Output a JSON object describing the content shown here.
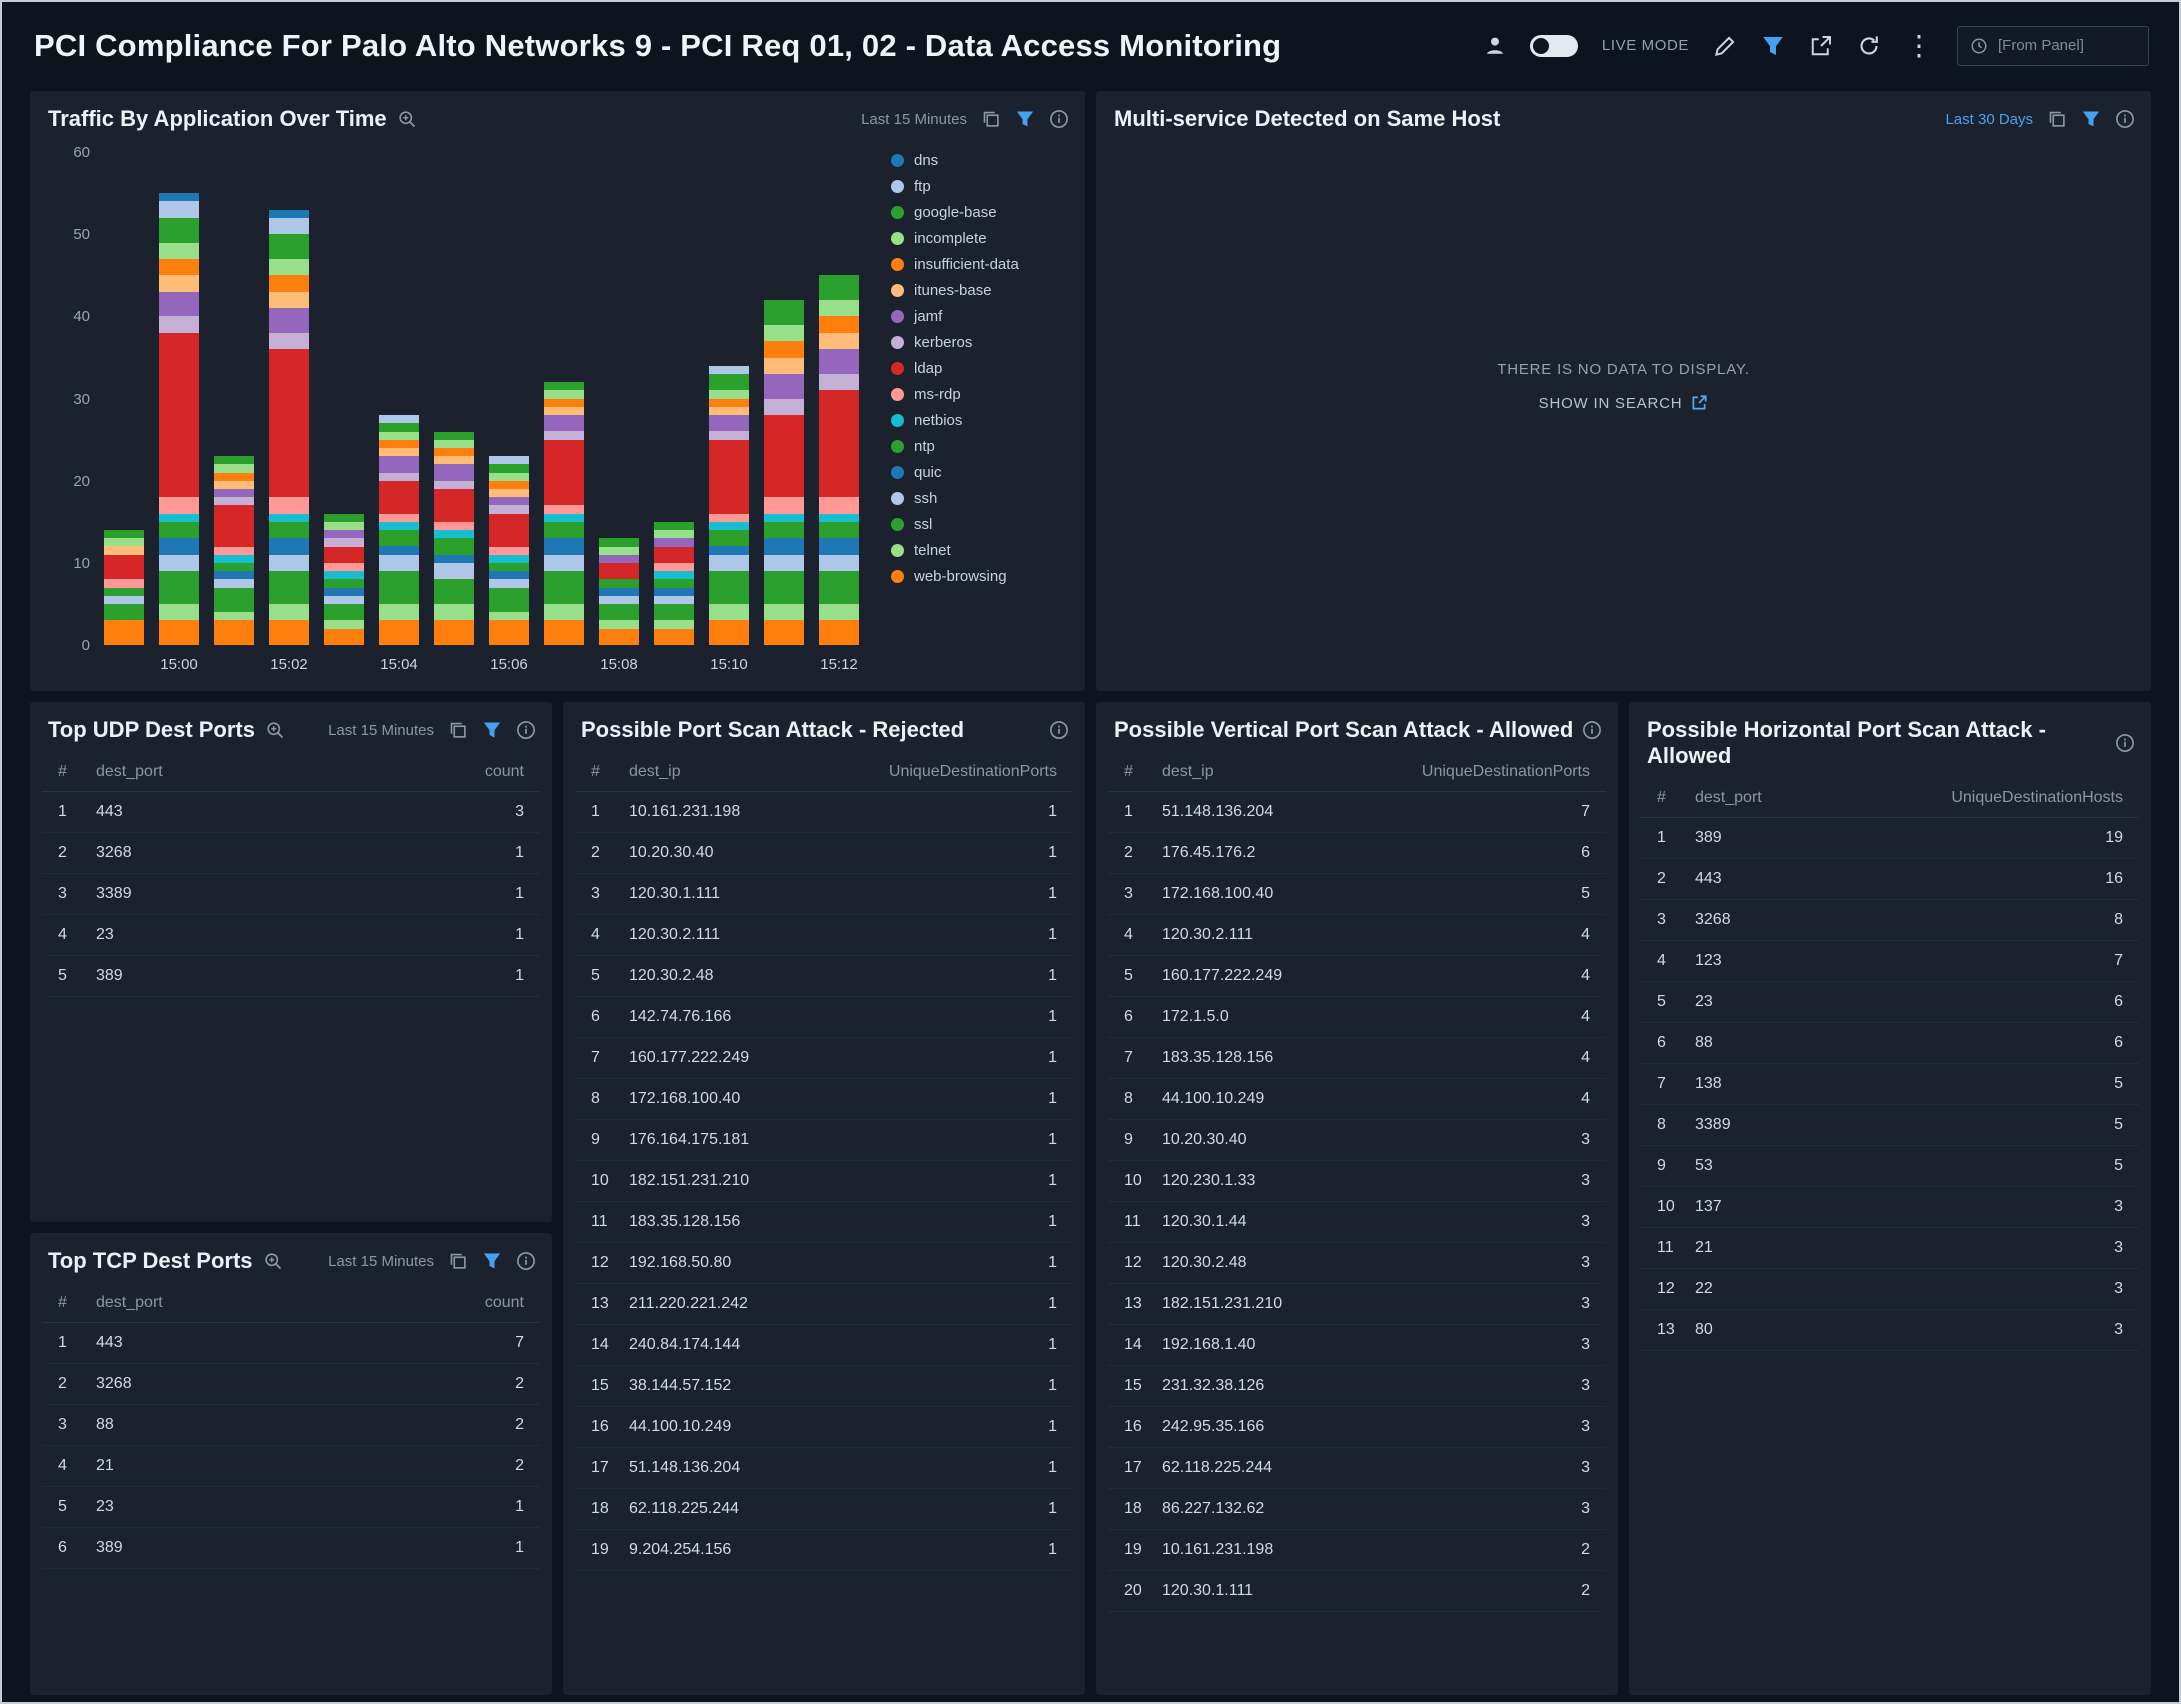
{
  "header": {
    "title": "PCI Compliance For Palo Alto Networks 9 - PCI Req 01, 02 - Data Access Monitoring",
    "live_mode_label": "LIVE MODE",
    "from_panel_value": "[From Panel]"
  },
  "theme": {
    "page_bg": "#0e141d",
    "panel_bg": "#1b222d",
    "accent_blue": "#459ff3",
    "text_primary": "#edf1f6",
    "text_muted": "#8b96a5"
  },
  "panels": {
    "traffic": {
      "title": "Traffic By Application Over Time",
      "time_range": "Last 15 Minutes"
    },
    "multi_service": {
      "title": "Multi-service Detected on Same Host",
      "time_range": "Last 30 Days",
      "empty_message": "THERE IS NO DATA TO DISPLAY.",
      "empty_link": "SHOW IN SEARCH"
    },
    "top_udp": {
      "title": "Top UDP Dest Ports",
      "time_range": "Last 15 Minutes",
      "columns": [
        "#",
        "dest_port",
        "count"
      ],
      "rows": [
        [
          1,
          "443",
          3
        ],
        [
          2,
          "3268",
          1
        ],
        [
          3,
          "3389",
          1
        ],
        [
          4,
          "23",
          1
        ],
        [
          5,
          "389",
          1
        ]
      ]
    },
    "top_tcp": {
      "title": "Top TCP Dest Ports",
      "time_range": "Last 15 Minutes",
      "columns": [
        "#",
        "dest_port",
        "count"
      ],
      "rows": [
        [
          1,
          "443",
          7
        ],
        [
          2,
          "3268",
          2
        ],
        [
          3,
          "88",
          2
        ],
        [
          4,
          "21",
          2
        ],
        [
          5,
          "23",
          1
        ],
        [
          6,
          "389",
          1
        ]
      ]
    },
    "rejected": {
      "title": "Possible Port Scan Attack - Rejected",
      "columns": [
        "#",
        "dest_ip",
        "UniqueDestinationPorts"
      ],
      "rows": [
        [
          1,
          "10.161.231.198",
          1
        ],
        [
          2,
          "10.20.30.40",
          1
        ],
        [
          3,
          "120.30.1.111",
          1
        ],
        [
          4,
          "120.30.2.111",
          1
        ],
        [
          5,
          "120.30.2.48",
          1
        ],
        [
          6,
          "142.74.76.166",
          1
        ],
        [
          7,
          "160.177.222.249",
          1
        ],
        [
          8,
          "172.168.100.40",
          1
        ],
        [
          9,
          "176.164.175.181",
          1
        ],
        [
          10,
          "182.151.231.210",
          1
        ],
        [
          11,
          "183.35.128.156",
          1
        ],
        [
          12,
          "192.168.50.80",
          1
        ],
        [
          13,
          "211.220.221.242",
          1
        ],
        [
          14,
          "240.84.174.144",
          1
        ],
        [
          15,
          "38.144.57.152",
          1
        ],
        [
          16,
          "44.100.10.249",
          1
        ],
        [
          17,
          "51.148.136.204",
          1
        ],
        [
          18,
          "62.118.225.244",
          1
        ],
        [
          19,
          "9.204.254.156",
          1
        ]
      ]
    },
    "vertical": {
      "title": "Possible Vertical Port Scan Attack - Allowed",
      "columns": [
        "#",
        "dest_ip",
        "UniqueDestinationPorts"
      ],
      "rows": [
        [
          1,
          "51.148.136.204",
          7
        ],
        [
          2,
          "176.45.176.2",
          6
        ],
        [
          3,
          "172.168.100.40",
          5
        ],
        [
          4,
          "120.30.2.111",
          4
        ],
        [
          5,
          "160.177.222.249",
          4
        ],
        [
          6,
          "172.1.5.0",
          4
        ],
        [
          7,
          "183.35.128.156",
          4
        ],
        [
          8,
          "44.100.10.249",
          4
        ],
        [
          9,
          "10.20.30.40",
          3
        ],
        [
          10,
          "120.230.1.33",
          3
        ],
        [
          11,
          "120.30.1.44",
          3
        ],
        [
          12,
          "120.30.2.48",
          3
        ],
        [
          13,
          "182.151.231.210",
          3
        ],
        [
          14,
          "192.168.1.40",
          3
        ],
        [
          15,
          "231.32.38.126",
          3
        ],
        [
          16,
          "242.95.35.166",
          3
        ],
        [
          17,
          "62.118.225.244",
          3
        ],
        [
          18,
          "86.227.132.62",
          3
        ],
        [
          19,
          "10.161.231.198",
          2
        ],
        [
          20,
          "120.30.1.111",
          2
        ]
      ]
    },
    "horizontal": {
      "title": "Possible Horizontal Port Scan Attack - Allowed",
      "columns": [
        "#",
        "dest_port",
        "UniqueDestinationHosts"
      ],
      "rows": [
        [
          1,
          "389",
          19
        ],
        [
          2,
          "443",
          16
        ],
        [
          3,
          "3268",
          8
        ],
        [
          4,
          "123",
          7
        ],
        [
          5,
          "23",
          6
        ],
        [
          6,
          "88",
          6
        ],
        [
          7,
          "138",
          5
        ],
        [
          8,
          "3389",
          5
        ],
        [
          9,
          "53",
          5
        ],
        [
          10,
          "137",
          3
        ],
        [
          11,
          "21",
          3
        ],
        [
          12,
          "22",
          3
        ],
        [
          13,
          "80",
          3
        ]
      ]
    }
  },
  "chart_data": {
    "type": "bar",
    "stacked": true,
    "title": "Traffic By Application Over Time",
    "xlabel": "",
    "ylabel": "",
    "ylim": [
      0,
      60
    ],
    "yticks": [
      0,
      10,
      20,
      30,
      40,
      50,
      60
    ],
    "grid": false,
    "legend_position": "right",
    "categories": [
      "14:59",
      "15:00",
      "15:01",
      "15:02",
      "15:03",
      "15:04",
      "15:05",
      "15:06",
      "15:07",
      "15:08",
      "15:09",
      "15:10",
      "15:11",
      "15:12"
    ],
    "x_tick_labels": [
      "",
      "15:00",
      "",
      "15:02",
      "",
      "15:04",
      "",
      "15:06",
      "",
      "15:08",
      "",
      "15:10",
      "",
      "15:12"
    ],
    "bar_totals": [
      14,
      55,
      23,
      53,
      16,
      28,
      26,
      23,
      32,
      13,
      15,
      34,
      42,
      45
    ],
    "series": [
      {
        "name": "dns",
        "color": "#1f77b4",
        "values": [
          0,
          1,
          0,
          1,
          0,
          0,
          0,
          0,
          0,
          0,
          0,
          0,
          0,
          0
        ]
      },
      {
        "name": "ftp",
        "color": "#aec7e8",
        "values": [
          0,
          2,
          0,
          2,
          0,
          1,
          0,
          1,
          0,
          0,
          0,
          1,
          0,
          0
        ]
      },
      {
        "name": "google-base",
        "color": "#2ca02c",
        "values": [
          1,
          3,
          1,
          3,
          1,
          1,
          1,
          1,
          1,
          1,
          1,
          2,
          3,
          3
        ]
      },
      {
        "name": "incomplete",
        "color": "#98df8a",
        "values": [
          1,
          2,
          1,
          2,
          1,
          1,
          1,
          1,
          1,
          1,
          1,
          1,
          2,
          2
        ]
      },
      {
        "name": "insufficient-data",
        "color": "#ff7f0e",
        "values": [
          0,
          2,
          1,
          2,
          0,
          1,
          1,
          1,
          1,
          0,
          0,
          1,
          2,
          2
        ]
      },
      {
        "name": "itunes-base",
        "color": "#ffbb78",
        "values": [
          1,
          2,
          1,
          2,
          0,
          1,
          1,
          1,
          1,
          0,
          0,
          1,
          2,
          2
        ]
      },
      {
        "name": "jamf",
        "color": "#9467bd",
        "values": [
          0,
          3,
          1,
          3,
          1,
          2,
          2,
          1,
          2,
          1,
          1,
          2,
          3,
          3
        ]
      },
      {
        "name": "kerberos",
        "color": "#c5b0d5",
        "values": [
          0,
          2,
          1,
          2,
          1,
          1,
          1,
          1,
          1,
          0,
          0,
          1,
          2,
          2
        ]
      },
      {
        "name": "ldap",
        "color": "#d62728",
        "values": [
          3,
          20,
          5,
          18,
          2,
          4,
          4,
          4,
          8,
          2,
          2,
          9,
          10,
          13
        ]
      },
      {
        "name": "ms-rdp",
        "color": "#ff9896",
        "values": [
          1,
          2,
          1,
          2,
          1,
          1,
          1,
          1,
          1,
          0,
          1,
          1,
          2,
          2
        ]
      },
      {
        "name": "netbios",
        "color": "#17becf",
        "values": [
          0,
          1,
          1,
          1,
          1,
          1,
          1,
          1,
          1,
          0,
          1,
          1,
          1,
          1
        ]
      },
      {
        "name": "ntp",
        "color": "#2ca02c",
        "values": [
          1,
          2,
          1,
          2,
          1,
          2,
          2,
          1,
          2,
          1,
          1,
          2,
          2,
          2
        ]
      },
      {
        "name": "quic",
        "color": "#1f77b4",
        "values": [
          0,
          2,
          1,
          2,
          1,
          1,
          1,
          1,
          2,
          1,
          1,
          1,
          2,
          2
        ]
      },
      {
        "name": "ssh",
        "color": "#aec7e8",
        "values": [
          1,
          2,
          1,
          2,
          1,
          2,
          2,
          1,
          2,
          1,
          1,
          2,
          2,
          2
        ]
      },
      {
        "name": "ssl",
        "color": "#2ca02c",
        "values": [
          2,
          4,
          3,
          4,
          2,
          4,
          3,
          3,
          4,
          2,
          2,
          4,
          4,
          4
        ]
      },
      {
        "name": "telnet",
        "color": "#98df8a",
        "values": [
          0,
          2,
          1,
          2,
          1,
          2,
          2,
          1,
          2,
          1,
          1,
          2,
          2,
          2
        ]
      },
      {
        "name": "web-browsing",
        "color": "#ff7f0e",
        "values": [
          3,
          3,
          3,
          3,
          2,
          3,
          3,
          3,
          3,
          2,
          2,
          3,
          3,
          3
        ]
      }
    ]
  }
}
